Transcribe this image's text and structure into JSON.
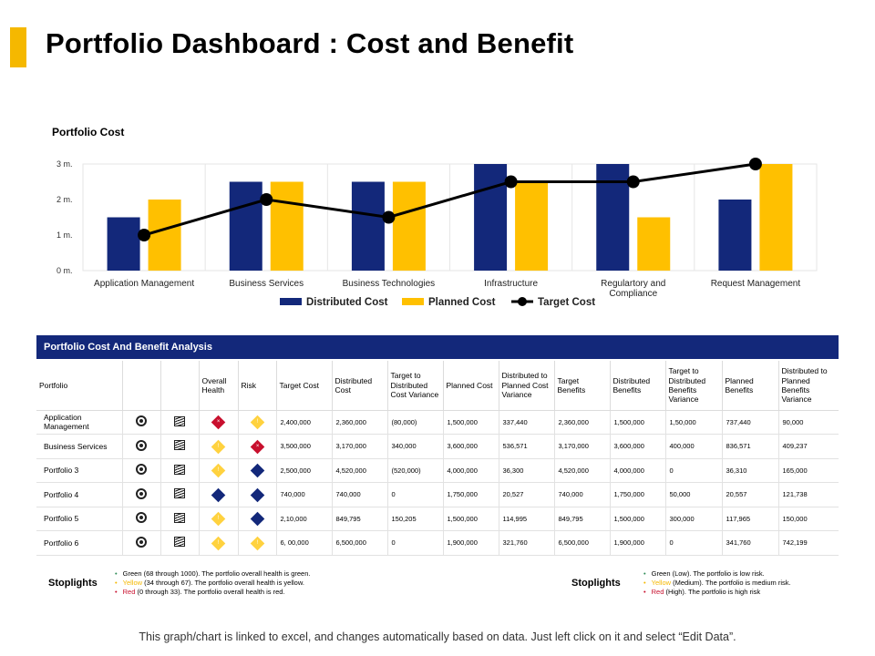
{
  "page_title": "Portfolio Dashboard  : Cost and Benefit",
  "chart_data": {
    "type": "bar",
    "title": "Portfolio Cost",
    "categories": [
      "Application Management",
      "Business Services",
      "Business Technologies",
      "Infrastructure",
      "Regulartory and Compliance",
      "Request Management"
    ],
    "categories_lines": [
      [
        "Application Management"
      ],
      [
        "Business Services"
      ],
      [
        "Business Technologies"
      ],
      [
        "Infrastructure"
      ],
      [
        "Regulartory and",
        "Compliance"
      ],
      [
        "Request Management"
      ]
    ],
    "series": [
      {
        "name": "Distributed Cost",
        "kind": "bar",
        "color": "#13287a",
        "values": [
          1.5,
          2.5,
          2.5,
          3.0,
          3.0,
          2.0
        ]
      },
      {
        "name": "Planned Cost",
        "kind": "bar",
        "color": "#ffc000",
        "values": [
          2.0,
          2.5,
          2.5,
          2.5,
          1.5,
          3.0
        ]
      },
      {
        "name": "Target Cost",
        "kind": "line",
        "color": "#000000",
        "values": [
          1.0,
          2.0,
          1.5,
          2.5,
          2.5,
          3.0
        ]
      }
    ],
    "y_ticks": [
      "0 m.",
      "1 m.",
      "2 m.",
      "3 m."
    ],
    "ylim": [
      0,
      3
    ],
    "xlabel": "",
    "ylabel": "",
    "legend_position": "bottom"
  },
  "table": {
    "title": "Portfolio Cost And Benefit Analysis",
    "headers": [
      "Portfolio",
      "",
      "",
      "Overall Health",
      "Risk",
      "Target Cost",
      "Distributed Cost",
      "Target to Distributed Cost Variance",
      "Planned Cost",
      "Distributed to Planned Cost Variance",
      "Target Benefits",
      "Distributed Benefits",
      "Target to Distributed Benefits Variance",
      "Planned Benefits",
      "Distributed to Planned Benefits Variance"
    ],
    "rows": [
      {
        "portfolio": "Application Management",
        "health": "red",
        "health_mark": "×",
        "risk": "yellow",
        "risk_mark": "!",
        "values": [
          "2,400,000",
          "2,360,000",
          "(80,000)",
          "1,500,000",
          "337,440",
          "2,360,000",
          "1,500,000",
          "1,50,000",
          "737,440",
          "90,000"
        ]
      },
      {
        "portfolio": "Business Services",
        "health": "yellow",
        "health_mark": "!",
        "risk": "red",
        "risk_mark": "×",
        "values": [
          "3,500,000",
          "3,170,000",
          "340,000",
          "3,600,000",
          "536,571",
          "3,170,000",
          "3,600,000",
          "400,000",
          "836,571",
          "409,237"
        ]
      },
      {
        "portfolio": "Portfolio 3",
        "health": "yellow",
        "health_mark": "!",
        "risk": "blue",
        "risk_mark": "",
        "values": [
          "2,500,000",
          "4,520,000",
          "(520,000)",
          "4,000,000",
          "36,300",
          "4,520,000",
          "4,000,000",
          "0",
          "36,310",
          "165,000"
        ]
      },
      {
        "portfolio": "Portfolio 4",
        "health": "blue",
        "health_mark": "",
        "risk": "blue",
        "risk_mark": "",
        "values": [
          "740,000",
          "740,000",
          "0",
          "1,750,000",
          "20,527",
          "740,000",
          "1,750,000",
          "50,000",
          "20,557",
          "121,738"
        ]
      },
      {
        "portfolio": "Portfolio 5",
        "health": "yellow",
        "health_mark": "!",
        "risk": "blue",
        "risk_mark": "",
        "values": [
          "2,10,000",
          "849,795",
          "150,205",
          "1,500,000",
          "114,995",
          "849,795",
          "1,500,000",
          "300,000",
          "117,965",
          "150,000"
        ]
      },
      {
        "portfolio": "Portfolio 6",
        "health": "yellow",
        "health_mark": "!",
        "risk": "yellow",
        "risk_mark": "!",
        "values": [
          "6, 00,000",
          "6,500,000",
          "0",
          "1,900,000",
          "321,760",
          "6,500,000",
          "1,900,000",
          "0",
          "341,760",
          "742,199"
        ]
      }
    ]
  },
  "stoplights_left": {
    "title": "Stoplights",
    "green": "Green (68 through 1000). The portfolio overall health is green.",
    "yellow_word": "Yellow",
    "yellow_rest": " (34 through 67). The portfolio overall health is yellow.",
    "red_word": "Red",
    "red_rest": " (0 through 33). The portfolio overall health is red."
  },
  "stoplights_right": {
    "title": "Stoplights",
    "green": "Green (Low). The portfolio is low risk.",
    "yellow_word": "Yellow",
    "yellow_rest": " (Medium). The portfolio is medium risk.",
    "red_word": "Red",
    "red_rest": " (High). The portfolio is high risk"
  },
  "footer": "This graph/chart is linked to excel, and changes automatically based on data. Just left click on it and select “Edit Data”."
}
